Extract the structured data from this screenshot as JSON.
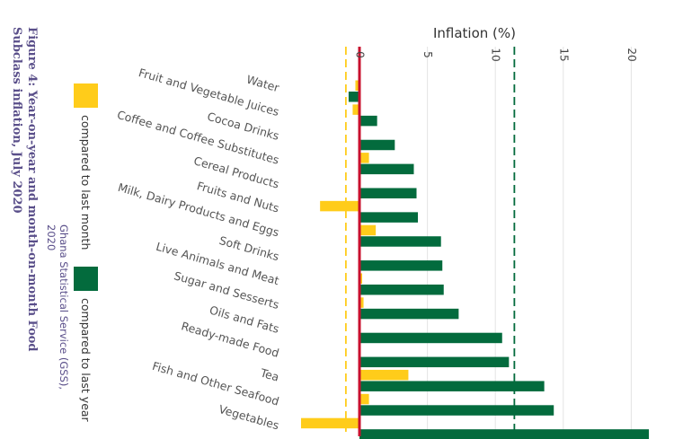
{
  "figure_caption": "Figure 4: Year-on-year and month-on-month Food Subclass inflation, July 2020",
  "source_note": "Ghana Statistical Service (GSS), 2020",
  "legend": [
    {
      "label": "compared to last month",
      "color": "#FFCC1A"
    },
    {
      "label": "compared to last year",
      "color": "#036B3D"
    }
  ],
  "chart_data": {
    "type": "bar",
    "orientation": "horizontal",
    "xlabel": "Inflation (%)",
    "xlim": [
      -4.5,
      21.5
    ],
    "xticks": [
      0,
      5,
      10,
      15,
      20
    ],
    "categories": [
      "Water",
      "Fruit and Vegetable Juices",
      "Cocoa Drinks",
      "Coffee and Coffee Substitutes",
      "Cereal Products",
      "Fruits and Nuts",
      "Milk, Dairy Products and Eggs",
      "Soft Drinks",
      "Live Animals and Meat",
      "Sugar and Sesserts",
      "Oils and Fats",
      "Ready-made Food",
      "Tea",
      "Fish and Other Seafood",
      "Vegetables"
    ],
    "series": [
      {
        "name": "compared to last month",
        "color": "#FFCC1A",
        "values": [
          -0.3,
          -0.5,
          0,
          0.7,
          0,
          -2.9,
          1.2,
          0,
          0.2,
          0.3,
          0,
          0,
          3.6,
          0.7,
          -4.3
        ]
      },
      {
        "name": "compared to last year",
        "color": "#036B3D",
        "values": [
          -0.8,
          1.3,
          2.6,
          4.0,
          4.2,
          4.3,
          6.0,
          6.1,
          6.2,
          7.3,
          10.5,
          11.0,
          13.6,
          14.3,
          21.3
        ]
      }
    ],
    "reference_lines": [
      {
        "value": -1.0,
        "color": "#FFCC1A",
        "style": "dashed"
      },
      {
        "value": 11.4,
        "color": "#036B3D",
        "style": "dashed"
      },
      {
        "value": 0,
        "color": "#C8102E",
        "style": "solid"
      }
    ],
    "grid": true
  }
}
